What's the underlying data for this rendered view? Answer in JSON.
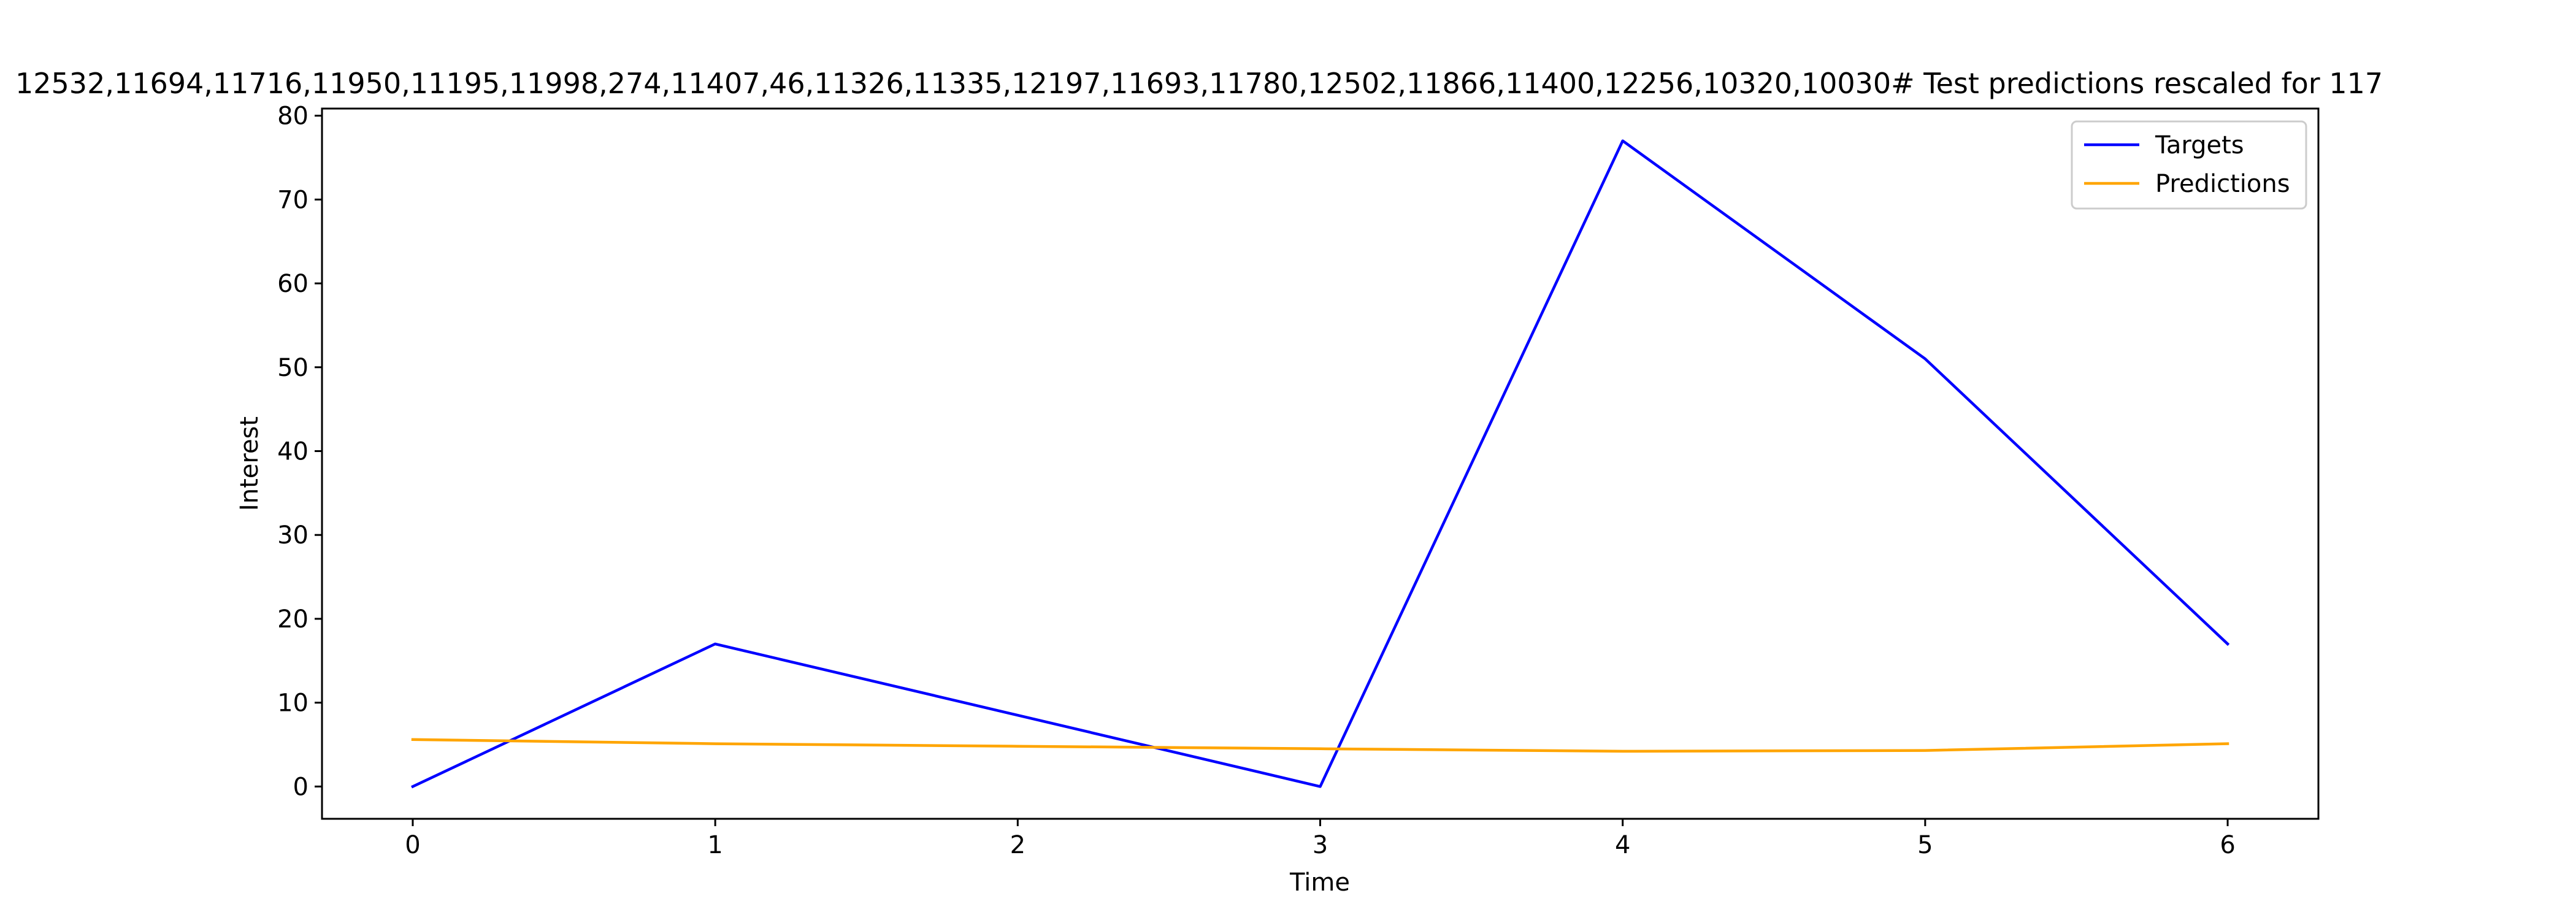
{
  "chart_data": {
    "type": "line",
    "title": "12532,11694,11716,11950,11195,11998,274,11407,46,11326,11335,12197,11693,11780,12502,11866,11400,12256,10320,10030# Test predictions rescaled for 117",
    "xlabel": "Time",
    "ylabel": "Interest",
    "x": [
      0,
      1,
      2,
      3,
      4,
      5,
      6
    ],
    "xlim": [
      -0.3,
      6.3
    ],
    "ylim": [
      -3.85,
      80.85
    ],
    "xticks": [
      "0",
      "1",
      "2",
      "3",
      "4",
      "5",
      "6"
    ],
    "yticks": [
      "0",
      "10",
      "20",
      "30",
      "40",
      "50",
      "60",
      "70",
      "80"
    ],
    "grid": false,
    "legend_position": "upper right",
    "series": [
      {
        "name": "Targets",
        "color": "#0000ff",
        "x": [
          0,
          1,
          3,
          4,
          5,
          6
        ],
        "values": [
          0,
          17,
          0,
          77,
          51,
          17
        ]
      },
      {
        "name": "Predictions",
        "color": "#ffa500",
        "x": [
          0,
          1,
          2,
          3,
          4,
          5,
          6
        ],
        "values": [
          5.6,
          5.1,
          4.8,
          4.5,
          4.2,
          4.3,
          5.1
        ]
      }
    ]
  }
}
